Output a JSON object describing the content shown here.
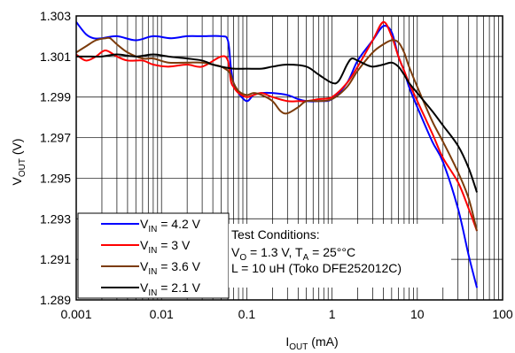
{
  "chart_data": {
    "type": "line",
    "title": "",
    "xlabel": {
      "main": "I",
      "sub": "OUT",
      "unit": " (mA)"
    },
    "ylabel": {
      "main": "V",
      "sub": "OUT",
      "unit": " (V)"
    },
    "x_scale": "log",
    "xlim": [
      0.001,
      100
    ],
    "ylim": [
      1.289,
      1.303
    ],
    "x_ticks": [
      0.001,
      0.01,
      0.1,
      1,
      10,
      100
    ],
    "x_tick_labels": [
      "0.001",
      "0.01",
      "0.1",
      "1",
      "10",
      "100"
    ],
    "y_ticks": [
      1.289,
      1.291,
      1.293,
      1.295,
      1.297,
      1.299,
      1.301,
      1.303
    ],
    "y_tick_labels": [
      "1.289",
      "1.291",
      "1.293",
      "1.295",
      "1.297",
      "1.299",
      "1.301",
      "1.303"
    ],
    "grid": true,
    "legend_position": "bottom-left",
    "series": [
      {
        "name": "V_IN = 4.2 V",
        "label_main": "V",
        "label_sub": "IN",
        "label_rest": " = 4.2 V",
        "color": "#0000ff",
        "x": [
          0.001,
          0.0013,
          0.0016,
          0.002,
          0.003,
          0.005,
          0.008,
          0.013,
          0.02,
          0.03,
          0.05,
          0.06,
          0.065,
          0.07,
          0.08,
          0.1,
          0.12,
          0.15,
          0.2,
          0.3,
          0.4,
          0.5,
          0.7,
          1,
          1.5,
          2,
          3,
          4,
          5,
          6,
          7,
          8,
          10,
          15,
          20,
          30,
          40,
          50
        ],
        "y": [
          1.3027,
          1.3021,
          1.3019,
          1.3019,
          1.302,
          1.3018,
          1.302,
          1.3019,
          1.302,
          1.302,
          1.302,
          1.3018,
          1.3005,
          1.2997,
          1.2992,
          1.2988,
          1.2991,
          1.2992,
          1.2992,
          1.2991,
          1.2989,
          1.2988,
          1.2988,
          1.2989,
          1.2997,
          1.3008,
          1.3018,
          1.3025,
          1.3022,
          1.301,
          1.3003,
          1.2995,
          1.2985,
          1.2968,
          1.2958,
          1.2935,
          1.2912,
          1.2896
        ]
      },
      {
        "name": "V_IN = 3 V",
        "label_main": "V",
        "label_sub": "IN",
        "label_rest": " = 3 V",
        "color": "#ff0000",
        "x": [
          0.001,
          0.0013,
          0.0017,
          0.0022,
          0.003,
          0.004,
          0.006,
          0.008,
          0.012,
          0.02,
          0.03,
          0.05,
          0.06,
          0.065,
          0.07,
          0.08,
          0.1,
          0.12,
          0.15,
          0.2,
          0.3,
          0.4,
          0.5,
          0.7,
          1,
          1.5,
          2,
          3,
          4,
          5,
          6,
          7,
          8,
          10,
          15,
          20,
          30,
          40,
          50
        ],
        "y": [
          1.3011,
          1.3008,
          1.301,
          1.3013,
          1.301,
          1.3008,
          1.3008,
          1.3006,
          1.3005,
          1.3006,
          1.3005,
          1.301,
          1.3008,
          1.2998,
          1.2995,
          1.2992,
          1.299,
          1.2991,
          1.2992,
          1.299,
          1.2988,
          1.2988,
          1.2988,
          1.2989,
          1.299,
          1.2997,
          1.3005,
          1.3018,
          1.3027,
          1.302,
          1.301,
          1.3003,
          1.2997,
          1.2988,
          1.2972,
          1.296,
          1.2948,
          1.2935,
          1.2924
        ]
      },
      {
        "name": "V_IN = 3.6 V",
        "label_main": "V",
        "label_sub": "IN",
        "label_rest": " = 3.6 V",
        "color": "#7b3b0b",
        "x": [
          0.001,
          0.0013,
          0.0017,
          0.0022,
          0.0025,
          0.003,
          0.004,
          0.006,
          0.008,
          0.012,
          0.02,
          0.03,
          0.04,
          0.05,
          0.06,
          0.065,
          0.07,
          0.08,
          0.1,
          0.12,
          0.15,
          0.2,
          0.25,
          0.3,
          0.4,
          0.5,
          0.7,
          1,
          1.5,
          2,
          3,
          4,
          5,
          6,
          7,
          8,
          10,
          15,
          20,
          30,
          40,
          50
        ],
        "y": [
          1.3012,
          1.3015,
          1.3018,
          1.3019,
          1.3019,
          1.3016,
          1.3012,
          1.3009,
          1.3009,
          1.3007,
          1.3007,
          1.3007,
          1.3006,
          1.3005,
          1.3003,
          1.3001,
          1.2997,
          1.2993,
          1.2991,
          1.2992,
          1.2991,
          1.2988,
          1.2983,
          1.2982,
          1.2985,
          1.2988,
          1.2988,
          1.2989,
          1.2995,
          1.3003,
          1.3012,
          1.3016,
          1.3018,
          1.3017,
          1.3012,
          1.3005,
          1.2995,
          1.2978,
          1.2968,
          1.2953,
          1.294,
          1.2924
        ]
      },
      {
        "name": "V_IN = 2.1 V",
        "label_main": "V",
        "label_sub": "IN",
        "label_rest": " = 2.1 V",
        "color": "#000000",
        "x": [
          0.001,
          0.0015,
          0.002,
          0.003,
          0.005,
          0.008,
          0.012,
          0.02,
          0.03,
          0.04,
          0.05,
          0.07,
          0.1,
          0.15,
          0.2,
          0.3,
          0.5,
          0.7,
          1,
          1.2,
          1.5,
          1.7,
          2,
          2.5,
          3,
          4,
          5,
          6,
          7,
          8,
          10,
          15,
          20,
          30,
          40,
          50
        ],
        "y": [
          1.301,
          1.301,
          1.301,
          1.3011,
          1.301,
          1.3011,
          1.301,
          1.3009,
          1.3008,
          1.3006,
          1.3005,
          1.3004,
          1.3004,
          1.3004,
          1.3005,
          1.3006,
          1.3005,
          1.3001,
          1.2997,
          1.2998,
          1.3006,
          1.3009,
          1.3008,
          1.3006,
          1.3005,
          1.3006,
          1.3007,
          1.3005,
          1.3001,
          1.2997,
          1.2992,
          1.2983,
          1.2976,
          1.2966,
          1.2955,
          1.2943
        ]
      }
    ],
    "annotation": {
      "line1": "Test Conditions:",
      "line2_main": "V",
      "line2_sub": "O",
      "line2_rest": " = 1.3 V, T",
      "line2_sub2": "A",
      "line2_tail": " = 25°°C",
      "line3": "L = 10 uH (Toko DFE252012C)"
    }
  }
}
